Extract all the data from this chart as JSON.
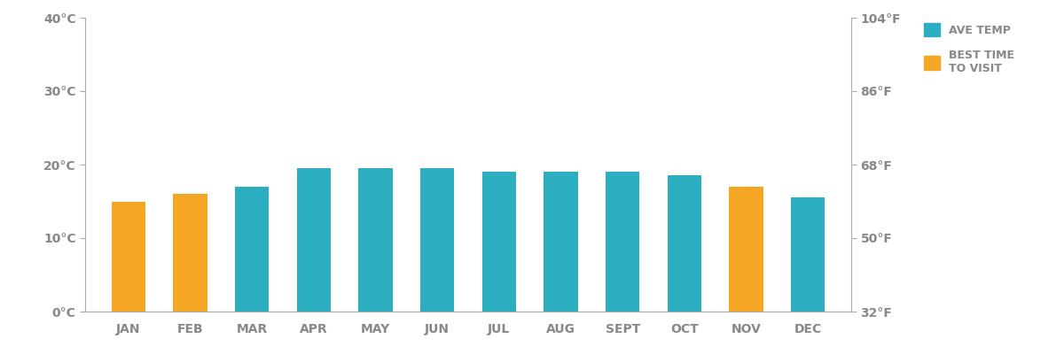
{
  "months": [
    "JAN",
    "FEB",
    "MAR",
    "APR",
    "MAY",
    "JUN",
    "JUL",
    "AUG",
    "SEPT",
    "OCT",
    "NOV",
    "DEC"
  ],
  "temperatures": [
    15,
    16,
    17,
    19.5,
    19.5,
    19.5,
    19,
    19,
    19,
    18.5,
    17,
    15.5
  ],
  "best_time_to_visit": [
    true,
    true,
    false,
    false,
    false,
    false,
    false,
    false,
    false,
    false,
    true,
    false
  ],
  "color_ave_temp": "#2BAEC0",
  "color_best_time": "#F5A623",
  "color_axis": "#aaaaaa",
  "color_text": "#888888",
  "ylim_left": [
    0,
    40
  ],
  "yticks_left": [
    0,
    10,
    20,
    30,
    40
  ],
  "ytick_labels_left": [
    "0°C",
    "10°C",
    "20°C",
    "30°C",
    "40°C"
  ],
  "ylim_right": [
    32,
    104
  ],
  "yticks_right": [
    32,
    50,
    68,
    86,
    104
  ],
  "ytick_labels_right": [
    "32°F",
    "50°F",
    "68°F",
    "86°F",
    "104°F"
  ],
  "legend_ave_temp": "AVE TEMP",
  "legend_best_time": "BEST TIME\nTO VISIT",
  "background_color": "#ffffff",
  "bar_width": 0.55
}
